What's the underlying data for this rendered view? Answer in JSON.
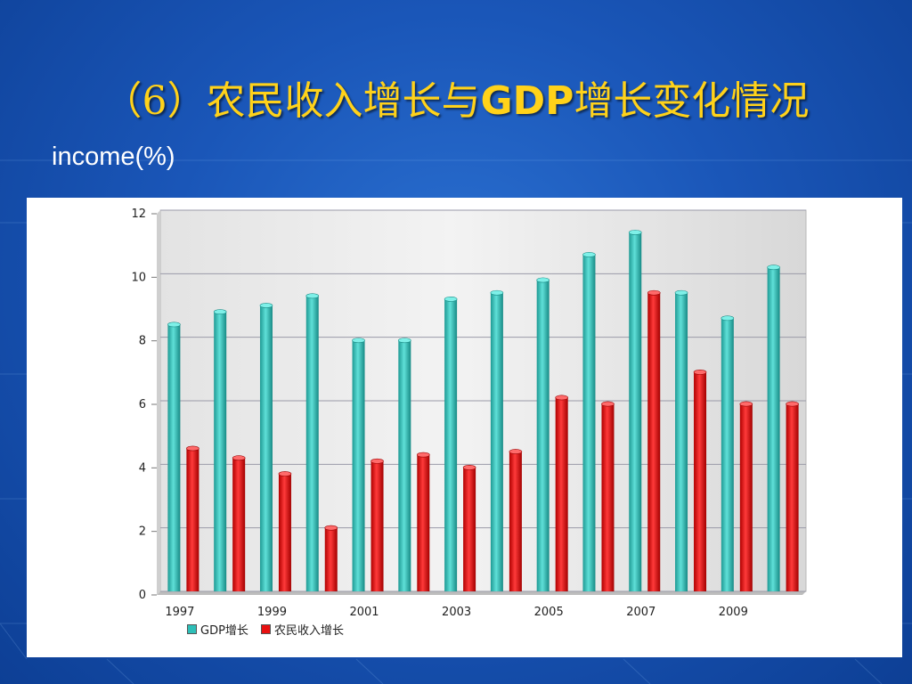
{
  "slide": {
    "title_prefix": "（6）农民收入增长与",
    "title_latin": "GDP",
    "title_suffix": "增长变化情况",
    "subtitle": "income(%)"
  },
  "colors": {
    "gdp": "#2ebfb8",
    "income": "#e81010",
    "title": "#ffd21a"
  },
  "chart_data": {
    "type": "bar",
    "title": "",
    "xlabel": "",
    "ylabel": "",
    "ylim": [
      0,
      12
    ],
    "yticks": [
      "0",
      "2",
      "4",
      "6",
      "8",
      "10",
      "12"
    ],
    "grid": true,
    "legend_position": "bottom-left",
    "categories": [
      "1997",
      "1998",
      "1999",
      "2000",
      "2001",
      "2002",
      "2003",
      "2004",
      "2005",
      "2006",
      "2007",
      "2008",
      "2009",
      "2010"
    ],
    "x_tick_labels": [
      "1997",
      "1999",
      "2001",
      "2003",
      "2005",
      "2007",
      "2009"
    ],
    "series": [
      {
        "name": "GDP增长",
        "values": [
          8.4,
          8.8,
          9.0,
          9.3,
          7.9,
          7.9,
          9.2,
          9.4,
          9.8,
          10.6,
          11.3,
          9.4,
          8.6,
          10.2
        ]
      },
      {
        "name": "农民收入增长",
        "values": [
          4.5,
          4.2,
          3.7,
          2.0,
          4.1,
          4.3,
          3.9,
          4.4,
          6.1,
          5.9,
          9.4,
          6.9,
          5.9,
          5.9
        ]
      }
    ]
  }
}
